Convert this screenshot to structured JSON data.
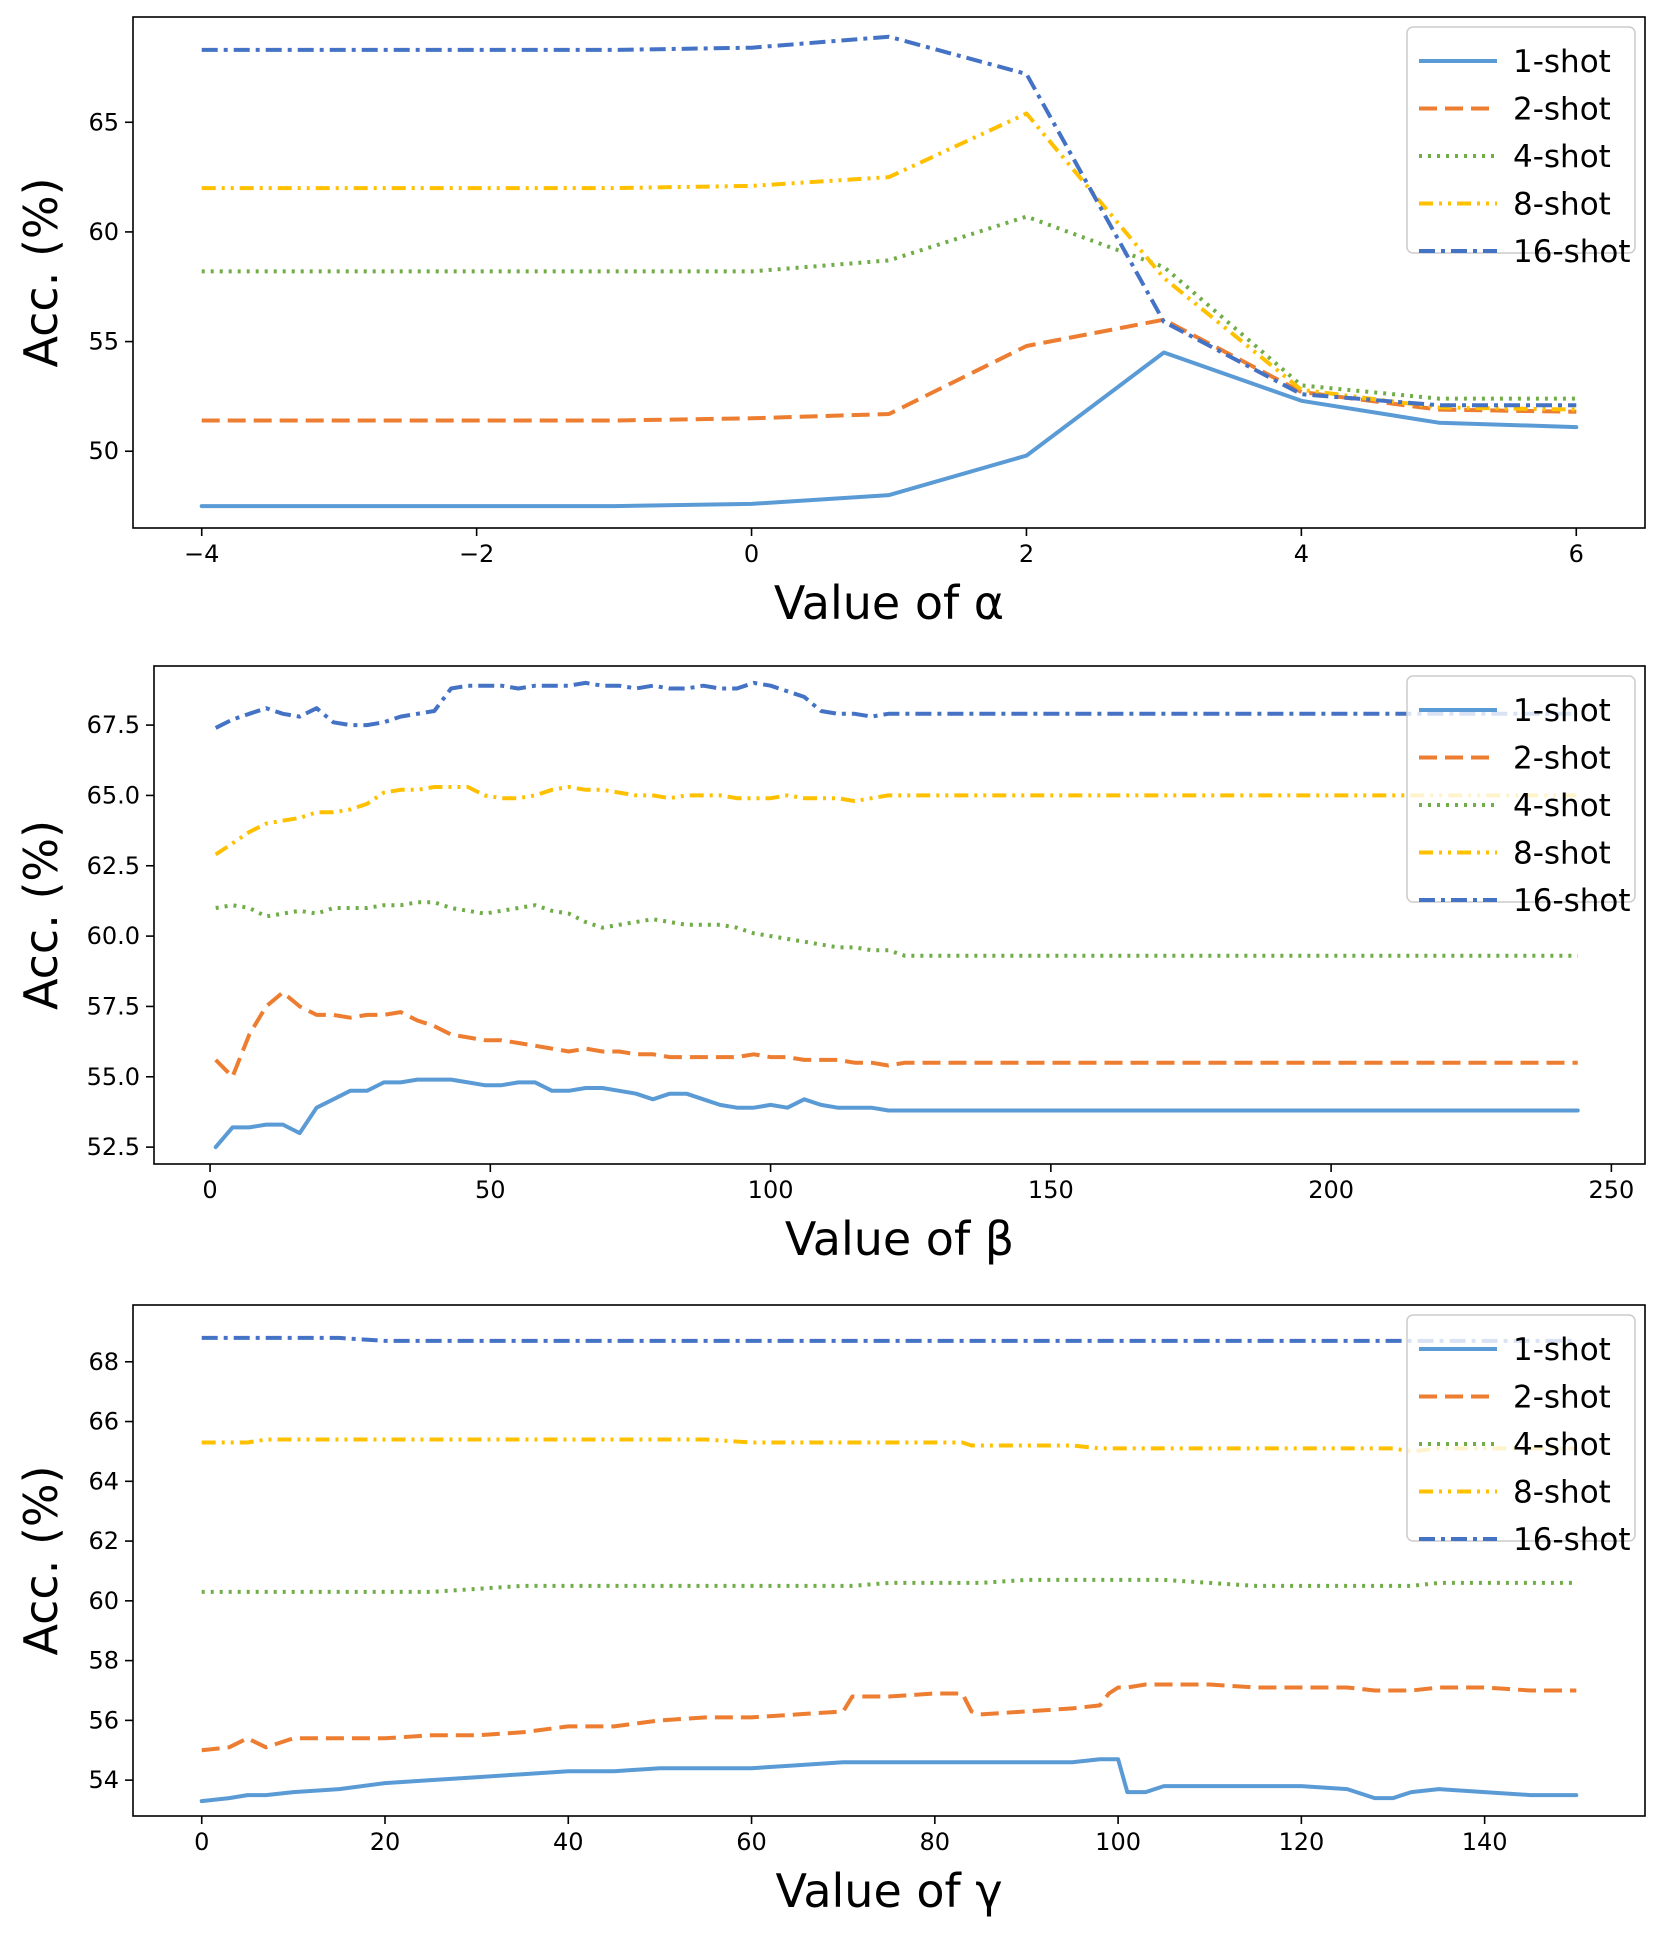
{
  "chart_data": [
    {
      "type": "line",
      "title": "",
      "xlabel": "Value of α",
      "ylabel": "Acc. (%)",
      "xlim": [
        -4.5,
        6.5
      ],
      "ylim": [
        46.5,
        69.8
      ],
      "xticks": [
        -4,
        -2,
        0,
        2,
        4,
        6
      ],
      "xtick_labels": [
        "−4",
        "−2",
        "0",
        "2",
        "4",
        "6"
      ],
      "yticks": [
        50,
        55,
        60,
        65
      ],
      "ytick_labels": [
        "50",
        "55",
        "60",
        "65"
      ],
      "grid": false,
      "legend_position": "top-right",
      "x": [
        -4,
        -3,
        -2,
        -1,
        0,
        1,
        2,
        3,
        4,
        5,
        6
      ],
      "series": [
        {
          "name": "1-shot",
          "color": "#5b9bd5",
          "style": "solid",
          "values": [
            47.5,
            47.5,
            47.5,
            47.5,
            47.6,
            48.0,
            49.8,
            54.5,
            52.3,
            51.3,
            51.1
          ]
        },
        {
          "name": "2-shot",
          "color": "#ed7d31",
          "style": "dashed",
          "values": [
            51.4,
            51.4,
            51.4,
            51.4,
            51.5,
            51.7,
            54.8,
            56.0,
            52.7,
            51.9,
            51.8
          ]
        },
        {
          "name": "4-shot",
          "color": "#70ad47",
          "style": "dotted",
          "values": [
            58.2,
            58.2,
            58.2,
            58.2,
            58.2,
            58.7,
            60.7,
            58.4,
            53.0,
            52.4,
            52.4
          ]
        },
        {
          "name": "8-shot",
          "color": "#ffc000",
          "style": "dashdotdot",
          "values": [
            62.0,
            62.0,
            62.0,
            62.0,
            62.1,
            62.5,
            65.4,
            57.9,
            52.8,
            52.0,
            51.9
          ]
        },
        {
          "name": "16-shot",
          "color": "#4472c4",
          "style": "dashdot",
          "values": [
            68.3,
            68.3,
            68.3,
            68.3,
            68.4,
            68.9,
            67.2,
            55.9,
            52.6,
            52.1,
            52.1
          ]
        }
      ]
    },
    {
      "type": "line",
      "title": "",
      "xlabel": "Value of β",
      "ylabel": "Acc. (%)",
      "xlim": [
        -10,
        256
      ],
      "ylim": [
        51.9,
        69.6
      ],
      "xticks": [
        0,
        50,
        100,
        150,
        200,
        250
      ],
      "xtick_labels": [
        "0",
        "50",
        "100",
        "150",
        "200",
        "250"
      ],
      "yticks": [
        52.5,
        55.0,
        57.5,
        60.0,
        62.5,
        65.0,
        67.5
      ],
      "ytick_labels": [
        "52.5",
        "55.0",
        "57.5",
        "60.0",
        "62.5",
        "65.0",
        "67.5"
      ],
      "grid": false,
      "legend_position": "top-right",
      "x": [
        1,
        4,
        7,
        10,
        13,
        16,
        19,
        22,
        25,
        28,
        31,
        34,
        37,
        40,
        43,
        46,
        49,
        52,
        55,
        58,
        61,
        64,
        67,
        70,
        73,
        76,
        79,
        82,
        85,
        88,
        91,
        94,
        97,
        100,
        103,
        106,
        109,
        112,
        115,
        118,
        121,
        124,
        150,
        200,
        244
      ],
      "series": [
        {
          "name": "1-shot",
          "color": "#5b9bd5",
          "style": "solid",
          "values": [
            52.5,
            53.2,
            53.2,
            53.3,
            53.3,
            53.0,
            53.9,
            54.2,
            54.5,
            54.5,
            54.8,
            54.8,
            54.9,
            54.9,
            54.9,
            54.8,
            54.7,
            54.7,
            54.8,
            54.8,
            54.5,
            54.5,
            54.6,
            54.6,
            54.5,
            54.4,
            54.2,
            54.4,
            54.4,
            54.2,
            54.0,
            53.9,
            53.9,
            54.0,
            53.9,
            54.2,
            54.0,
            53.9,
            53.9,
            53.9,
            53.8,
            53.8,
            53.8,
            53.8,
            53.8
          ]
        },
        {
          "name": "2-shot",
          "color": "#ed7d31",
          "style": "dashed",
          "values": [
            55.6,
            55.0,
            56.5,
            57.5,
            58.0,
            57.5,
            57.2,
            57.2,
            57.1,
            57.2,
            57.2,
            57.3,
            57.0,
            56.8,
            56.5,
            56.4,
            56.3,
            56.3,
            56.2,
            56.1,
            56.0,
            55.9,
            56.0,
            55.9,
            55.9,
            55.8,
            55.8,
            55.7,
            55.7,
            55.7,
            55.7,
            55.7,
            55.8,
            55.7,
            55.7,
            55.6,
            55.6,
            55.6,
            55.5,
            55.5,
            55.4,
            55.5,
            55.5,
            55.5,
            55.5
          ]
        },
        {
          "name": "4-shot",
          "color": "#70ad47",
          "style": "dotted",
          "values": [
            61.0,
            61.1,
            61.0,
            60.7,
            60.8,
            60.9,
            60.8,
            61.0,
            61.0,
            61.0,
            61.1,
            61.1,
            61.2,
            61.2,
            61.0,
            60.9,
            60.8,
            60.9,
            61.0,
            61.1,
            60.9,
            60.8,
            60.5,
            60.3,
            60.4,
            60.5,
            60.6,
            60.5,
            60.4,
            60.4,
            60.4,
            60.3,
            60.1,
            60.0,
            59.9,
            59.8,
            59.7,
            59.6,
            59.6,
            59.5,
            59.5,
            59.3,
            59.3,
            59.3,
            59.3
          ]
        },
        {
          "name": "8-shot",
          "color": "#ffc000",
          "style": "dashdotdot",
          "values": [
            62.9,
            63.3,
            63.7,
            64.0,
            64.1,
            64.2,
            64.4,
            64.4,
            64.5,
            64.7,
            65.1,
            65.2,
            65.2,
            65.3,
            65.3,
            65.3,
            65.0,
            64.9,
            64.9,
            65.0,
            65.2,
            65.3,
            65.2,
            65.2,
            65.1,
            65.0,
            65.0,
            64.9,
            65.0,
            65.0,
            65.0,
            64.9,
            64.9,
            64.9,
            65.0,
            64.9,
            64.9,
            64.9,
            64.8,
            64.9,
            65.0,
            65.0,
            65.0,
            65.0,
            65.0
          ]
        },
        {
          "name": "16-shot",
          "color": "#4472c4",
          "style": "dashdot",
          "values": [
            67.4,
            67.7,
            67.9,
            68.1,
            67.9,
            67.8,
            68.1,
            67.6,
            67.5,
            67.5,
            67.6,
            67.8,
            67.9,
            68.0,
            68.8,
            68.9,
            68.9,
            68.9,
            68.8,
            68.9,
            68.9,
            68.9,
            69.0,
            68.9,
            68.9,
            68.8,
            68.9,
            68.8,
            68.8,
            68.9,
            68.8,
            68.8,
            69.0,
            68.9,
            68.7,
            68.5,
            68.0,
            67.9,
            67.9,
            67.8,
            67.9,
            67.9,
            67.9,
            67.9,
            67.9
          ]
        }
      ]
    },
    {
      "type": "line",
      "title": "",
      "xlabel": "Value of γ",
      "ylabel": "Acc. (%)",
      "xlim": [
        -7.5,
        157.5
      ],
      "ylim": [
        52.8,
        69.9
      ],
      "xticks": [
        0,
        20,
        40,
        60,
        80,
        100,
        120,
        140
      ],
      "xtick_labels": [
        "0",
        "20",
        "40",
        "60",
        "80",
        "100",
        "120",
        "140"
      ],
      "yticks": [
        54,
        56,
        58,
        60,
        62,
        64,
        66,
        68
      ],
      "ytick_labels": [
        "54",
        "56",
        "58",
        "60",
        "62",
        "64",
        "66",
        "68"
      ],
      "grid": false,
      "legend_position": "top-right",
      "x": [
        0,
        3,
        5,
        7,
        10,
        15,
        20,
        25,
        30,
        35,
        40,
        45,
        50,
        55,
        60,
        65,
        70,
        71,
        75,
        80,
        83,
        84,
        85,
        90,
        95,
        98,
        99,
        100,
        101,
        103,
        105,
        110,
        115,
        120,
        125,
        128,
        130,
        132,
        135,
        140,
        145,
        150
      ],
      "series": [
        {
          "name": "1-shot",
          "color": "#5b9bd5",
          "style": "solid",
          "values": [
            53.3,
            53.4,
            53.5,
            53.5,
            53.6,
            53.7,
            53.9,
            54.0,
            54.1,
            54.2,
            54.3,
            54.3,
            54.4,
            54.4,
            54.4,
            54.5,
            54.6,
            54.6,
            54.6,
            54.6,
            54.6,
            54.6,
            54.6,
            54.6,
            54.6,
            54.7,
            54.7,
            54.7,
            53.6,
            53.6,
            53.8,
            53.8,
            53.8,
            53.8,
            53.7,
            53.4,
            53.4,
            53.6,
            53.7,
            53.6,
            53.5,
            53.5
          ]
        },
        {
          "name": "2-shot",
          "color": "#ed7d31",
          "style": "dashed",
          "values": [
            55.0,
            55.1,
            55.4,
            55.1,
            55.4,
            55.4,
            55.4,
            55.5,
            55.5,
            55.6,
            55.8,
            55.8,
            56.0,
            56.1,
            56.1,
            56.2,
            56.3,
            56.8,
            56.8,
            56.9,
            56.9,
            56.3,
            56.2,
            56.3,
            56.4,
            56.5,
            56.9,
            57.1,
            57.1,
            57.2,
            57.2,
            57.2,
            57.1,
            57.1,
            57.1,
            57.0,
            57.0,
            57.0,
            57.1,
            57.1,
            57.0,
            57.0
          ]
        },
        {
          "name": "4-shot",
          "color": "#70ad47",
          "style": "dotted",
          "values": [
            60.3,
            60.3,
            60.3,
            60.3,
            60.3,
            60.3,
            60.3,
            60.3,
            60.4,
            60.5,
            60.5,
            60.5,
            60.5,
            60.5,
            60.5,
            60.5,
            60.5,
            60.5,
            60.6,
            60.6,
            60.6,
            60.6,
            60.6,
            60.7,
            60.7,
            60.7,
            60.7,
            60.7,
            60.7,
            60.7,
            60.7,
            60.6,
            60.5,
            60.5,
            60.5,
            60.5,
            60.5,
            60.5,
            60.6,
            60.6,
            60.6,
            60.6
          ]
        },
        {
          "name": "8-shot",
          "color": "#ffc000",
          "style": "dashdotdot",
          "values": [
            65.3,
            65.3,
            65.3,
            65.4,
            65.4,
            65.4,
            65.4,
            65.4,
            65.4,
            65.4,
            65.4,
            65.4,
            65.4,
            65.4,
            65.3,
            65.3,
            65.3,
            65.3,
            65.3,
            65.3,
            65.3,
            65.2,
            65.2,
            65.2,
            65.2,
            65.1,
            65.1,
            65.1,
            65.1,
            65.1,
            65.1,
            65.1,
            65.1,
            65.1,
            65.1,
            65.1,
            65.1,
            65.0,
            65.1,
            65.1,
            65.1,
            65.1
          ]
        },
        {
          "name": "16-shot",
          "color": "#4472c4",
          "style": "dashdot",
          "values": [
            68.8,
            68.8,
            68.8,
            68.8,
            68.8,
            68.8,
            68.7,
            68.7,
            68.7,
            68.7,
            68.7,
            68.7,
            68.7,
            68.7,
            68.7,
            68.7,
            68.7,
            68.7,
            68.7,
            68.7,
            68.7,
            68.7,
            68.7,
            68.7,
            68.7,
            68.7,
            68.7,
            68.7,
            68.7,
            68.7,
            68.7,
            68.7,
            68.7,
            68.7,
            68.7,
            68.7,
            68.7,
            68.7,
            68.7,
            68.7,
            68.7,
            68.7
          ]
        }
      ]
    }
  ]
}
